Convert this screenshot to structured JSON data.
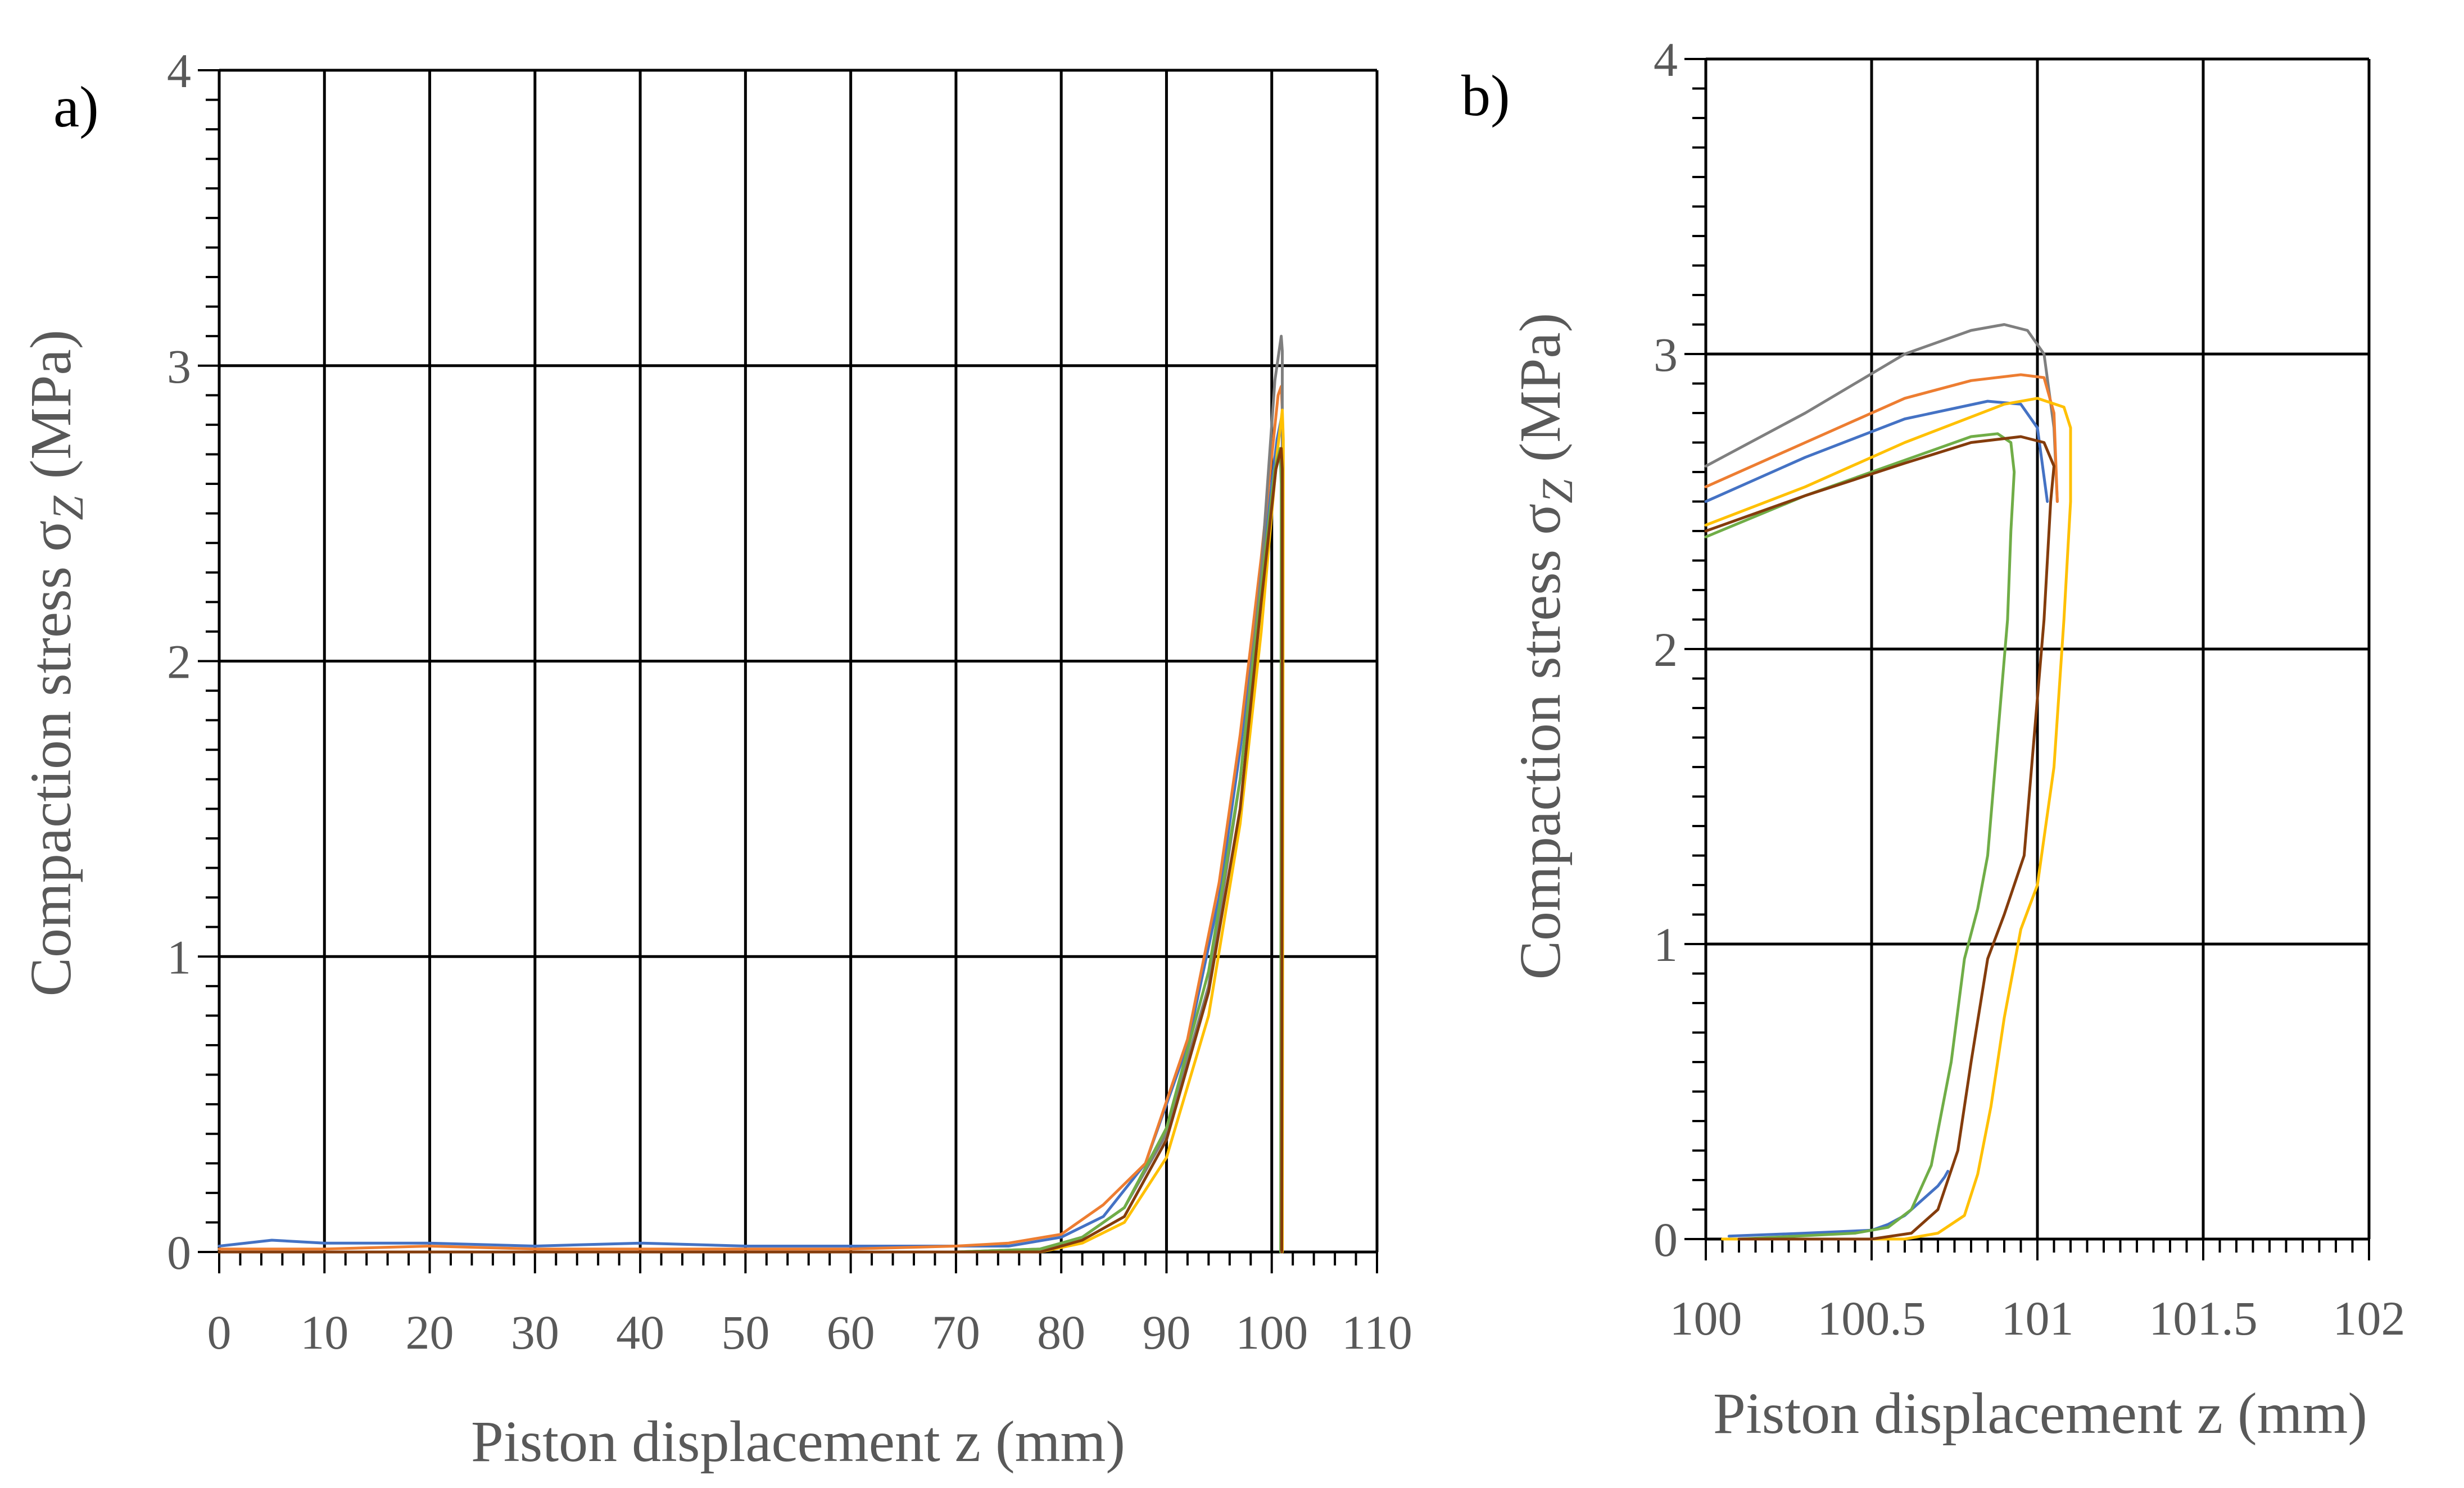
{
  "chart_data": [
    {
      "panel": "a)",
      "type": "line",
      "title": "",
      "xlabel": "Piston displacement z (mm)",
      "ylabel": "Compaction stress σ",
      "ylabel_subscript": "Z",
      "ylabel_unit": "(MPa)",
      "xlim": [
        0,
        110
      ],
      "ylim": [
        0,
        4
      ],
      "xticks": [
        "0",
        "10",
        "20",
        "30",
        "40",
        "50",
        "60",
        "70",
        "80",
        "90",
        "100",
        "110"
      ],
      "yticks": [
        "0",
        "1",
        "2",
        "3",
        "4"
      ],
      "xtick_values": [
        0,
        10,
        20,
        30,
        40,
        50,
        60,
        70,
        80,
        90,
        100,
        110
      ],
      "ytick_values": [
        0,
        1,
        2,
        3,
        4
      ],
      "grid": true,
      "series": [
        {
          "name": "blue",
          "color": "#4472C4",
          "x": [
            0,
            5,
            10,
            20,
            30,
            40,
            50,
            60,
            70,
            75,
            80,
            84,
            88,
            92,
            95,
            97,
            99,
            100.5,
            100.9,
            101,
            100.95
          ],
          "y": [
            0.02,
            0.04,
            0.03,
            0.03,
            0.02,
            0.03,
            0.02,
            0.02,
            0.02,
            0.02,
            0.05,
            0.12,
            0.3,
            0.7,
            1.2,
            1.7,
            2.3,
            2.75,
            2.82,
            2.75,
            0
          ]
        },
        {
          "name": "orange",
          "color": "#ED7D31",
          "x": [
            0,
            10,
            20,
            30,
            40,
            50,
            60,
            70,
            75,
            80,
            84,
            88,
            92,
            95,
            97,
            99,
            100.6,
            100.9,
            101,
            100.95
          ],
          "y": [
            0.01,
            0.01,
            0.02,
            0.01,
            0.01,
            0.01,
            0.01,
            0.02,
            0.03,
            0.06,
            0.16,
            0.3,
            0.72,
            1.25,
            1.75,
            2.35,
            2.9,
            2.93,
            2.85,
            0
          ]
        },
        {
          "name": "gray",
          "color": "#7F7F7F",
          "x": [
            0,
            10,
            20,
            30,
            40,
            50,
            60,
            70,
            78,
            82,
            86,
            90,
            94,
            97,
            99,
            100.3,
            100.9,
            101,
            100.95
          ],
          "y": [
            0,
            0,
            0,
            0,
            0,
            0,
            0,
            0,
            0.01,
            0.05,
            0.15,
            0.4,
            0.9,
            1.6,
            2.3,
            2.95,
            3.1,
            3.05,
            0
          ]
        },
        {
          "name": "yellow",
          "color": "#FFC000",
          "x": [
            0,
            10,
            20,
            30,
            40,
            50,
            60,
            70,
            78,
            82,
            86,
            90,
            94,
            97,
            99,
            100.5,
            101,
            101.1,
            101
          ],
          "y": [
            0,
            0,
            0,
            0,
            0,
            0,
            0,
            0,
            0,
            0.03,
            0.1,
            0.32,
            0.8,
            1.45,
            2.1,
            2.7,
            2.85,
            2.75,
            0
          ]
        },
        {
          "name": "green",
          "color": "#70AD47",
          "x": [
            0,
            10,
            20,
            30,
            40,
            50,
            60,
            70,
            78,
            82,
            86,
            90,
            94,
            97,
            99,
            100.3,
            100.8,
            100.9,
            100.85
          ],
          "y": [
            0,
            0,
            0,
            0,
            0,
            0,
            0,
            0,
            0.01,
            0.05,
            0.15,
            0.42,
            0.95,
            1.6,
            2.25,
            2.65,
            2.72,
            2.6,
            0
          ]
        },
        {
          "name": "brown",
          "color": "#843C0C",
          "x": [
            0,
            10,
            20,
            30,
            40,
            50,
            60,
            70,
            78,
            82,
            86,
            90,
            94,
            97,
            99,
            100.4,
            100.9,
            101,
            100.95
          ],
          "y": [
            0,
            0,
            0,
            0,
            0,
            0,
            0,
            0,
            0,
            0.04,
            0.12,
            0.38,
            0.88,
            1.5,
            2.2,
            2.65,
            2.72,
            2.65,
            0
          ]
        }
      ]
    },
    {
      "panel": "b)",
      "type": "line",
      "title": "",
      "xlabel": "Piston displacement z (mm)",
      "ylabel": "Compaction stress σ",
      "ylabel_subscript": "Z",
      "ylabel_unit": "(MPa)",
      "xlim": [
        100,
        102
      ],
      "ylim": [
        0,
        4
      ],
      "xticks": [
        "100",
        "100.5",
        "101",
        "101.5",
        "102"
      ],
      "yticks": [
        "0",
        "1",
        "2",
        "3",
        "4"
      ],
      "xtick_values": [
        100,
        100.5,
        101,
        101.5,
        102
      ],
      "ytick_values": [
        0,
        1,
        2,
        3,
        4
      ],
      "grid": true,
      "series": [
        {
          "name": "gray",
          "color": "#7F7F7F",
          "x": [
            100,
            100.3,
            100.6,
            100.8,
            100.9,
            100.97,
            101.02,
            101.05,
            101.06
          ],
          "y": [
            2.62,
            2.8,
            3.0,
            3.08,
            3.1,
            3.08,
            3.0,
            2.75,
            2.5
          ]
        },
        {
          "name": "orange",
          "color": "#ED7D31",
          "x": [
            100,
            100.3,
            100.6,
            100.8,
            100.95,
            101.02,
            101.05,
            101.06
          ],
          "y": [
            2.55,
            2.7,
            2.85,
            2.91,
            2.93,
            2.92,
            2.8,
            2.5
          ]
        },
        {
          "name": "blue",
          "color": "#4472C4",
          "x": [
            100.07,
            100.3,
            100.5,
            100.55,
            100.6,
            100.63,
            100.66,
            100.7,
            100.72,
            100.73
          ],
          "y": [
            0.01,
            0.02,
            0.03,
            0.05,
            0.08,
            0.11,
            0.14,
            0.18,
            0.21,
            0.23
          ]
        },
        {
          "name": "blue-upper",
          "color": "#4472C4",
          "x": [
            100,
            100.3,
            100.6,
            100.85,
            100.95,
            101.0,
            101.03
          ],
          "y": [
            2.5,
            2.65,
            2.78,
            2.84,
            2.83,
            2.75,
            2.5
          ]
        },
        {
          "name": "yellow",
          "color": "#FFC000",
          "x": [
            100.05,
            100.4,
            100.6,
            100.7,
            100.78,
            100.82,
            100.86,
            100.9,
            100.95,
            101.0,
            101.05,
            101.08,
            101.1,
            101.1,
            101.08,
            101.0,
            100.9,
            100.6,
            100.3,
            100
          ],
          "y": [
            0,
            0,
            0,
            0.02,
            0.08,
            0.22,
            0.45,
            0.75,
            1.05,
            1.2,
            1.6,
            2.1,
            2.5,
            2.75,
            2.82,
            2.85,
            2.83,
            2.7,
            2.55,
            2.42
          ]
        },
        {
          "name": "green",
          "color": "#70AD47",
          "x": [
            100.1,
            100.45,
            100.55,
            100.62,
            100.68,
            100.74,
            100.78,
            100.82,
            100.85,
            100.88,
            100.91,
            100.92,
            100.93,
            100.92,
            100.88,
            100.8,
            100.6,
            100.3,
            100
          ],
          "y": [
            0,
            0.02,
            0.04,
            0.1,
            0.25,
            0.6,
            0.95,
            1.12,
            1.3,
            1.7,
            2.1,
            2.4,
            2.6,
            2.7,
            2.73,
            2.72,
            2.64,
            2.52,
            2.38
          ]
        },
        {
          "name": "brown",
          "color": "#843C0C",
          "x": [
            100.1,
            100.5,
            100.62,
            100.7,
            100.76,
            100.8,
            100.85,
            100.9,
            100.96,
            100.99,
            101.02,
            101.04,
            101.05,
            101.02,
            100.95,
            100.8,
            100.6,
            100.3,
            100
          ],
          "y": [
            0,
            0,
            0.02,
            0.1,
            0.3,
            0.6,
            0.95,
            1.1,
            1.3,
            1.7,
            2.1,
            2.5,
            2.62,
            2.7,
            2.72,
            2.7,
            2.63,
            2.52,
            2.4
          ]
        }
      ]
    }
  ]
}
